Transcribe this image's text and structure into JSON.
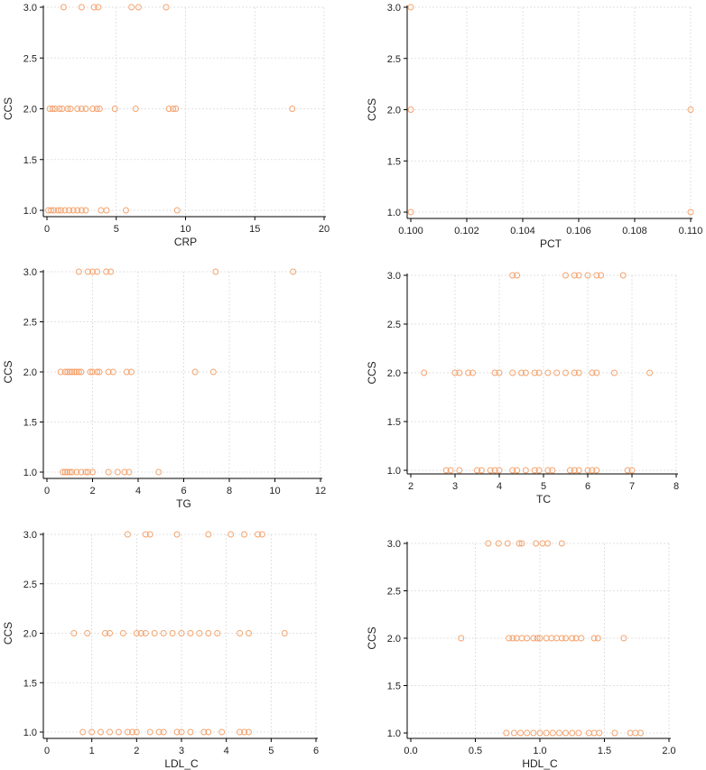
{
  "colors": {
    "point": "#f4a16a"
  },
  "chart_data": [
    {
      "type": "scatter",
      "title": "",
      "xlabel": "CRP",
      "ylabel": "CCS",
      "xlim": [
        0,
        20
      ],
      "ylim": [
        1.0,
        3.0
      ],
      "xticks": [
        0,
        5,
        10,
        15,
        20
      ],
      "xtick_labels": [
        "0",
        "5",
        "10",
        "15",
        "20"
      ],
      "yticks": [
        1.0,
        1.5,
        2.0,
        2.5,
        3.0
      ],
      "ytick_labels": [
        "1.0",
        "1.5",
        "2.0",
        "2.5",
        "3.0"
      ],
      "grid": true,
      "points": [
        {
          "x": 1.2,
          "y": 3
        },
        {
          "x": 2.5,
          "y": 3
        },
        {
          "x": 3.4,
          "y": 3
        },
        {
          "x": 3.7,
          "y": 3
        },
        {
          "x": 6.1,
          "y": 3
        },
        {
          "x": 6.6,
          "y": 3
        },
        {
          "x": 8.6,
          "y": 3
        },
        {
          "x": 0.2,
          "y": 2
        },
        {
          "x": 0.4,
          "y": 2
        },
        {
          "x": 0.6,
          "y": 2
        },
        {
          "x": 0.9,
          "y": 2
        },
        {
          "x": 1.1,
          "y": 2
        },
        {
          "x": 1.5,
          "y": 2
        },
        {
          "x": 1.7,
          "y": 2
        },
        {
          "x": 2.2,
          "y": 2
        },
        {
          "x": 2.5,
          "y": 2
        },
        {
          "x": 2.8,
          "y": 2
        },
        {
          "x": 3.3,
          "y": 2
        },
        {
          "x": 3.6,
          "y": 2
        },
        {
          "x": 3.8,
          "y": 2
        },
        {
          "x": 4.9,
          "y": 2
        },
        {
          "x": 6.4,
          "y": 2
        },
        {
          "x": 8.8,
          "y": 2
        },
        {
          "x": 9.1,
          "y": 2
        },
        {
          "x": 9.3,
          "y": 2
        },
        {
          "x": 17.7,
          "y": 2
        },
        {
          "x": 0.1,
          "y": 1
        },
        {
          "x": 0.3,
          "y": 1
        },
        {
          "x": 0.5,
          "y": 1
        },
        {
          "x": 0.8,
          "y": 1
        },
        {
          "x": 1.0,
          "y": 1
        },
        {
          "x": 1.3,
          "y": 1
        },
        {
          "x": 1.6,
          "y": 1
        },
        {
          "x": 1.9,
          "y": 1
        },
        {
          "x": 2.2,
          "y": 1
        },
        {
          "x": 2.5,
          "y": 1
        },
        {
          "x": 2.8,
          "y": 1
        },
        {
          "x": 3.9,
          "y": 1
        },
        {
          "x": 4.3,
          "y": 1
        },
        {
          "x": 5.7,
          "y": 1
        },
        {
          "x": 9.4,
          "y": 1
        }
      ]
    },
    {
      "type": "scatter",
      "title": "",
      "xlabel": "PCT",
      "ylabel": "CCS",
      "xlim": [
        0.1,
        0.11
      ],
      "ylim": [
        1.0,
        3.0
      ],
      "xticks": [
        0.1,
        0.102,
        0.104,
        0.106,
        0.108,
        0.11
      ],
      "xtick_labels": [
        "0.100",
        "0.102",
        "0.104",
        "0.106",
        "0.108",
        "0.110"
      ],
      "yticks": [
        1.0,
        1.5,
        2.0,
        2.5,
        3.0
      ],
      "ytick_labels": [
        "1.0",
        "1.5",
        "2.0",
        "2.5",
        "3.0"
      ],
      "grid": true,
      "points": [
        {
          "x": 0.1,
          "y": 3
        },
        {
          "x": 0.1,
          "y": 2
        },
        {
          "x": 0.11,
          "y": 2
        },
        {
          "x": 0.1,
          "y": 1
        },
        {
          "x": 0.11,
          "y": 1
        }
      ]
    },
    {
      "type": "scatter",
      "title": "",
      "xlabel": "TG",
      "ylabel": "CCS",
      "xlim": [
        0,
        12
      ],
      "ylim": [
        1.0,
        3.0
      ],
      "xticks": [
        0,
        2,
        4,
        6,
        8,
        10,
        12
      ],
      "xtick_labels": [
        "0",
        "2",
        "4",
        "6",
        "8",
        "10",
        "12"
      ],
      "yticks": [
        1.0,
        1.5,
        2.0,
        2.5,
        3.0
      ],
      "ytick_labels": [
        "1.0",
        "1.5",
        "2.0",
        "2.5",
        "3.0"
      ],
      "grid": true,
      "points": [
        {
          "x": 1.4,
          "y": 3
        },
        {
          "x": 1.8,
          "y": 3
        },
        {
          "x": 2.0,
          "y": 3
        },
        {
          "x": 2.2,
          "y": 3
        },
        {
          "x": 2.6,
          "y": 3
        },
        {
          "x": 2.8,
          "y": 3
        },
        {
          "x": 7.4,
          "y": 3
        },
        {
          "x": 10.8,
          "y": 3
        },
        {
          "x": 0.6,
          "y": 2
        },
        {
          "x": 0.8,
          "y": 2
        },
        {
          "x": 0.9,
          "y": 2
        },
        {
          "x": 1.0,
          "y": 2
        },
        {
          "x": 1.1,
          "y": 2
        },
        {
          "x": 1.2,
          "y": 2
        },
        {
          "x": 1.3,
          "y": 2
        },
        {
          "x": 1.4,
          "y": 2
        },
        {
          "x": 1.5,
          "y": 2
        },
        {
          "x": 1.9,
          "y": 2
        },
        {
          "x": 2.0,
          "y": 2
        },
        {
          "x": 2.2,
          "y": 2
        },
        {
          "x": 2.3,
          "y": 2
        },
        {
          "x": 2.7,
          "y": 2
        },
        {
          "x": 2.9,
          "y": 2
        },
        {
          "x": 3.5,
          "y": 2
        },
        {
          "x": 3.7,
          "y": 2
        },
        {
          "x": 6.5,
          "y": 2
        },
        {
          "x": 7.3,
          "y": 2
        },
        {
          "x": 0.7,
          "y": 1
        },
        {
          "x": 0.8,
          "y": 1
        },
        {
          "x": 0.9,
          "y": 1
        },
        {
          "x": 1.0,
          "y": 1
        },
        {
          "x": 1.1,
          "y": 1
        },
        {
          "x": 1.3,
          "y": 1
        },
        {
          "x": 1.5,
          "y": 1
        },
        {
          "x": 1.7,
          "y": 1
        },
        {
          "x": 1.8,
          "y": 1
        },
        {
          "x": 2.0,
          "y": 1
        },
        {
          "x": 2.7,
          "y": 1
        },
        {
          "x": 3.1,
          "y": 1
        },
        {
          "x": 3.4,
          "y": 1
        },
        {
          "x": 3.6,
          "y": 1
        },
        {
          "x": 4.9,
          "y": 1
        }
      ]
    },
    {
      "type": "scatter",
      "title": "",
      "xlabel": "TC",
      "ylabel": "CCS",
      "xlim": [
        2,
        8
      ],
      "ylim": [
        1.0,
        3.0
      ],
      "xticks": [
        2,
        3,
        4,
        5,
        6,
        7,
        8
      ],
      "xtick_labels": [
        "2",
        "3",
        "4",
        "5",
        "6",
        "7",
        "8"
      ],
      "yticks": [
        1.0,
        1.5,
        2.0,
        2.5,
        3.0
      ],
      "ytick_labels": [
        "1.0",
        "1.5",
        "2.0",
        "2.5",
        "3.0"
      ],
      "grid": true,
      "points": [
        {
          "x": 4.3,
          "y": 3
        },
        {
          "x": 4.4,
          "y": 3
        },
        {
          "x": 5.5,
          "y": 3
        },
        {
          "x": 5.7,
          "y": 3
        },
        {
          "x": 5.8,
          "y": 3
        },
        {
          "x": 6.0,
          "y": 3
        },
        {
          "x": 6.2,
          "y": 3
        },
        {
          "x": 6.3,
          "y": 3
        },
        {
          "x": 6.8,
          "y": 3
        },
        {
          "x": 2.3,
          "y": 2
        },
        {
          "x": 3.0,
          "y": 2
        },
        {
          "x": 3.1,
          "y": 2
        },
        {
          "x": 3.3,
          "y": 2
        },
        {
          "x": 3.4,
          "y": 2
        },
        {
          "x": 3.9,
          "y": 2
        },
        {
          "x": 4.0,
          "y": 2
        },
        {
          "x": 4.3,
          "y": 2
        },
        {
          "x": 4.5,
          "y": 2
        },
        {
          "x": 4.6,
          "y": 2
        },
        {
          "x": 4.8,
          "y": 2
        },
        {
          "x": 4.9,
          "y": 2
        },
        {
          "x": 5.1,
          "y": 2
        },
        {
          "x": 5.3,
          "y": 2
        },
        {
          "x": 5.5,
          "y": 2
        },
        {
          "x": 5.7,
          "y": 2
        },
        {
          "x": 5.8,
          "y": 2
        },
        {
          "x": 6.1,
          "y": 2
        },
        {
          "x": 6.2,
          "y": 2
        },
        {
          "x": 6.6,
          "y": 2
        },
        {
          "x": 7.4,
          "y": 2
        },
        {
          "x": 2.8,
          "y": 1
        },
        {
          "x": 2.9,
          "y": 1
        },
        {
          "x": 3.1,
          "y": 1
        },
        {
          "x": 3.5,
          "y": 1
        },
        {
          "x": 3.6,
          "y": 1
        },
        {
          "x": 3.8,
          "y": 1
        },
        {
          "x": 3.9,
          "y": 1
        },
        {
          "x": 4.0,
          "y": 1
        },
        {
          "x": 4.3,
          "y": 1
        },
        {
          "x": 4.4,
          "y": 1
        },
        {
          "x": 4.6,
          "y": 1
        },
        {
          "x": 4.8,
          "y": 1
        },
        {
          "x": 4.9,
          "y": 1
        },
        {
          "x": 5.1,
          "y": 1
        },
        {
          "x": 5.2,
          "y": 1
        },
        {
          "x": 5.6,
          "y": 1
        },
        {
          "x": 5.7,
          "y": 1
        },
        {
          "x": 5.8,
          "y": 1
        },
        {
          "x": 6.0,
          "y": 1
        },
        {
          "x": 6.1,
          "y": 1
        },
        {
          "x": 6.2,
          "y": 1
        },
        {
          "x": 6.9,
          "y": 1
        },
        {
          "x": 7.0,
          "y": 1
        }
      ]
    },
    {
      "type": "scatter",
      "title": "",
      "xlabel": "LDL_C",
      "ylabel": "CCS",
      "xlim": [
        0,
        6
      ],
      "ylim": [
        1.0,
        3.0
      ],
      "xticks": [
        0,
        1,
        2,
        3,
        4,
        5,
        6
      ],
      "xtick_labels": [
        "0",
        "1",
        "2",
        "3",
        "4",
        "5",
        "6"
      ],
      "yticks": [
        1.0,
        1.5,
        2.0,
        2.5,
        3.0
      ],
      "ytick_labels": [
        "1.0",
        "1.5",
        "2.0",
        "2.5",
        "3.0"
      ],
      "grid": true,
      "points": [
        {
          "x": 1.8,
          "y": 3
        },
        {
          "x": 2.2,
          "y": 3
        },
        {
          "x": 2.3,
          "y": 3
        },
        {
          "x": 2.9,
          "y": 3
        },
        {
          "x": 3.6,
          "y": 3
        },
        {
          "x": 4.1,
          "y": 3
        },
        {
          "x": 4.4,
          "y": 3
        },
        {
          "x": 4.7,
          "y": 3
        },
        {
          "x": 4.8,
          "y": 3
        },
        {
          "x": 0.6,
          "y": 2
        },
        {
          "x": 0.9,
          "y": 2
        },
        {
          "x": 1.3,
          "y": 2
        },
        {
          "x": 1.4,
          "y": 2
        },
        {
          "x": 1.7,
          "y": 2
        },
        {
          "x": 2.0,
          "y": 2
        },
        {
          "x": 2.1,
          "y": 2
        },
        {
          "x": 2.2,
          "y": 2
        },
        {
          "x": 2.4,
          "y": 2
        },
        {
          "x": 2.6,
          "y": 2
        },
        {
          "x": 2.8,
          "y": 2
        },
        {
          "x": 3.0,
          "y": 2
        },
        {
          "x": 3.2,
          "y": 2
        },
        {
          "x": 3.4,
          "y": 2
        },
        {
          "x": 3.6,
          "y": 2
        },
        {
          "x": 3.8,
          "y": 2
        },
        {
          "x": 4.3,
          "y": 2
        },
        {
          "x": 4.5,
          "y": 2
        },
        {
          "x": 5.3,
          "y": 2
        },
        {
          "x": 0.8,
          "y": 1
        },
        {
          "x": 1.0,
          "y": 1
        },
        {
          "x": 1.2,
          "y": 1
        },
        {
          "x": 1.4,
          "y": 1
        },
        {
          "x": 1.6,
          "y": 1
        },
        {
          "x": 1.8,
          "y": 1
        },
        {
          "x": 1.9,
          "y": 1
        },
        {
          "x": 2.0,
          "y": 1
        },
        {
          "x": 2.3,
          "y": 1
        },
        {
          "x": 2.5,
          "y": 1
        },
        {
          "x": 2.6,
          "y": 1
        },
        {
          "x": 2.9,
          "y": 1
        },
        {
          "x": 3.0,
          "y": 1
        },
        {
          "x": 3.2,
          "y": 1
        },
        {
          "x": 3.5,
          "y": 1
        },
        {
          "x": 3.6,
          "y": 1
        },
        {
          "x": 3.9,
          "y": 1
        },
        {
          "x": 4.3,
          "y": 1
        },
        {
          "x": 4.4,
          "y": 1
        },
        {
          "x": 4.5,
          "y": 1
        }
      ]
    },
    {
      "type": "scatter",
      "title": "",
      "xlabel": "HDL_C",
      "ylabel": "CCS",
      "xlim": [
        0,
        2
      ],
      "ylim": [
        1.0,
        3.0
      ],
      "xticks": [
        0,
        0.5,
        1.0,
        1.5,
        2.0
      ],
      "xtick_labels": [
        "0.0",
        "0.5",
        "1.0",
        "1.5",
        "2.0"
      ],
      "yticks": [
        1.0,
        1.5,
        2.0,
        2.5,
        3.0
      ],
      "ytick_labels": [
        "1.0",
        "1.5",
        "2.0",
        "2.5",
        "3.0"
      ],
      "grid": true,
      "points": [
        {
          "x": 0.6,
          "y": 3
        },
        {
          "x": 0.68,
          "y": 3
        },
        {
          "x": 0.75,
          "y": 3
        },
        {
          "x": 0.84,
          "y": 3
        },
        {
          "x": 0.86,
          "y": 3
        },
        {
          "x": 0.97,
          "y": 3
        },
        {
          "x": 1.02,
          "y": 3
        },
        {
          "x": 1.06,
          "y": 3
        },
        {
          "x": 1.17,
          "y": 3
        },
        {
          "x": 0.39,
          "y": 2
        },
        {
          "x": 0.76,
          "y": 2
        },
        {
          "x": 0.79,
          "y": 2
        },
        {
          "x": 0.82,
          "y": 2
        },
        {
          "x": 0.86,
          "y": 2
        },
        {
          "x": 0.9,
          "y": 2
        },
        {
          "x": 0.95,
          "y": 2
        },
        {
          "x": 0.98,
          "y": 2
        },
        {
          "x": 1.0,
          "y": 2
        },
        {
          "x": 1.05,
          "y": 2
        },
        {
          "x": 1.09,
          "y": 2
        },
        {
          "x": 1.13,
          "y": 2
        },
        {
          "x": 1.17,
          "y": 2
        },
        {
          "x": 1.2,
          "y": 2
        },
        {
          "x": 1.25,
          "y": 2
        },
        {
          "x": 1.28,
          "y": 2
        },
        {
          "x": 1.32,
          "y": 2
        },
        {
          "x": 1.42,
          "y": 2
        },
        {
          "x": 1.45,
          "y": 2
        },
        {
          "x": 1.65,
          "y": 2
        },
        {
          "x": 0.74,
          "y": 1
        },
        {
          "x": 0.8,
          "y": 1
        },
        {
          "x": 0.85,
          "y": 1
        },
        {
          "x": 0.9,
          "y": 1
        },
        {
          "x": 0.95,
          "y": 1
        },
        {
          "x": 1.0,
          "y": 1
        },
        {
          "x": 1.05,
          "y": 1
        },
        {
          "x": 1.1,
          "y": 1
        },
        {
          "x": 1.15,
          "y": 1
        },
        {
          "x": 1.2,
          "y": 1
        },
        {
          "x": 1.25,
          "y": 1
        },
        {
          "x": 1.3,
          "y": 1
        },
        {
          "x": 1.38,
          "y": 1
        },
        {
          "x": 1.42,
          "y": 1
        },
        {
          "x": 1.46,
          "y": 1
        },
        {
          "x": 1.58,
          "y": 1
        },
        {
          "x": 1.7,
          "y": 1
        },
        {
          "x": 1.74,
          "y": 1
        },
        {
          "x": 1.78,
          "y": 1
        }
      ]
    }
  ]
}
